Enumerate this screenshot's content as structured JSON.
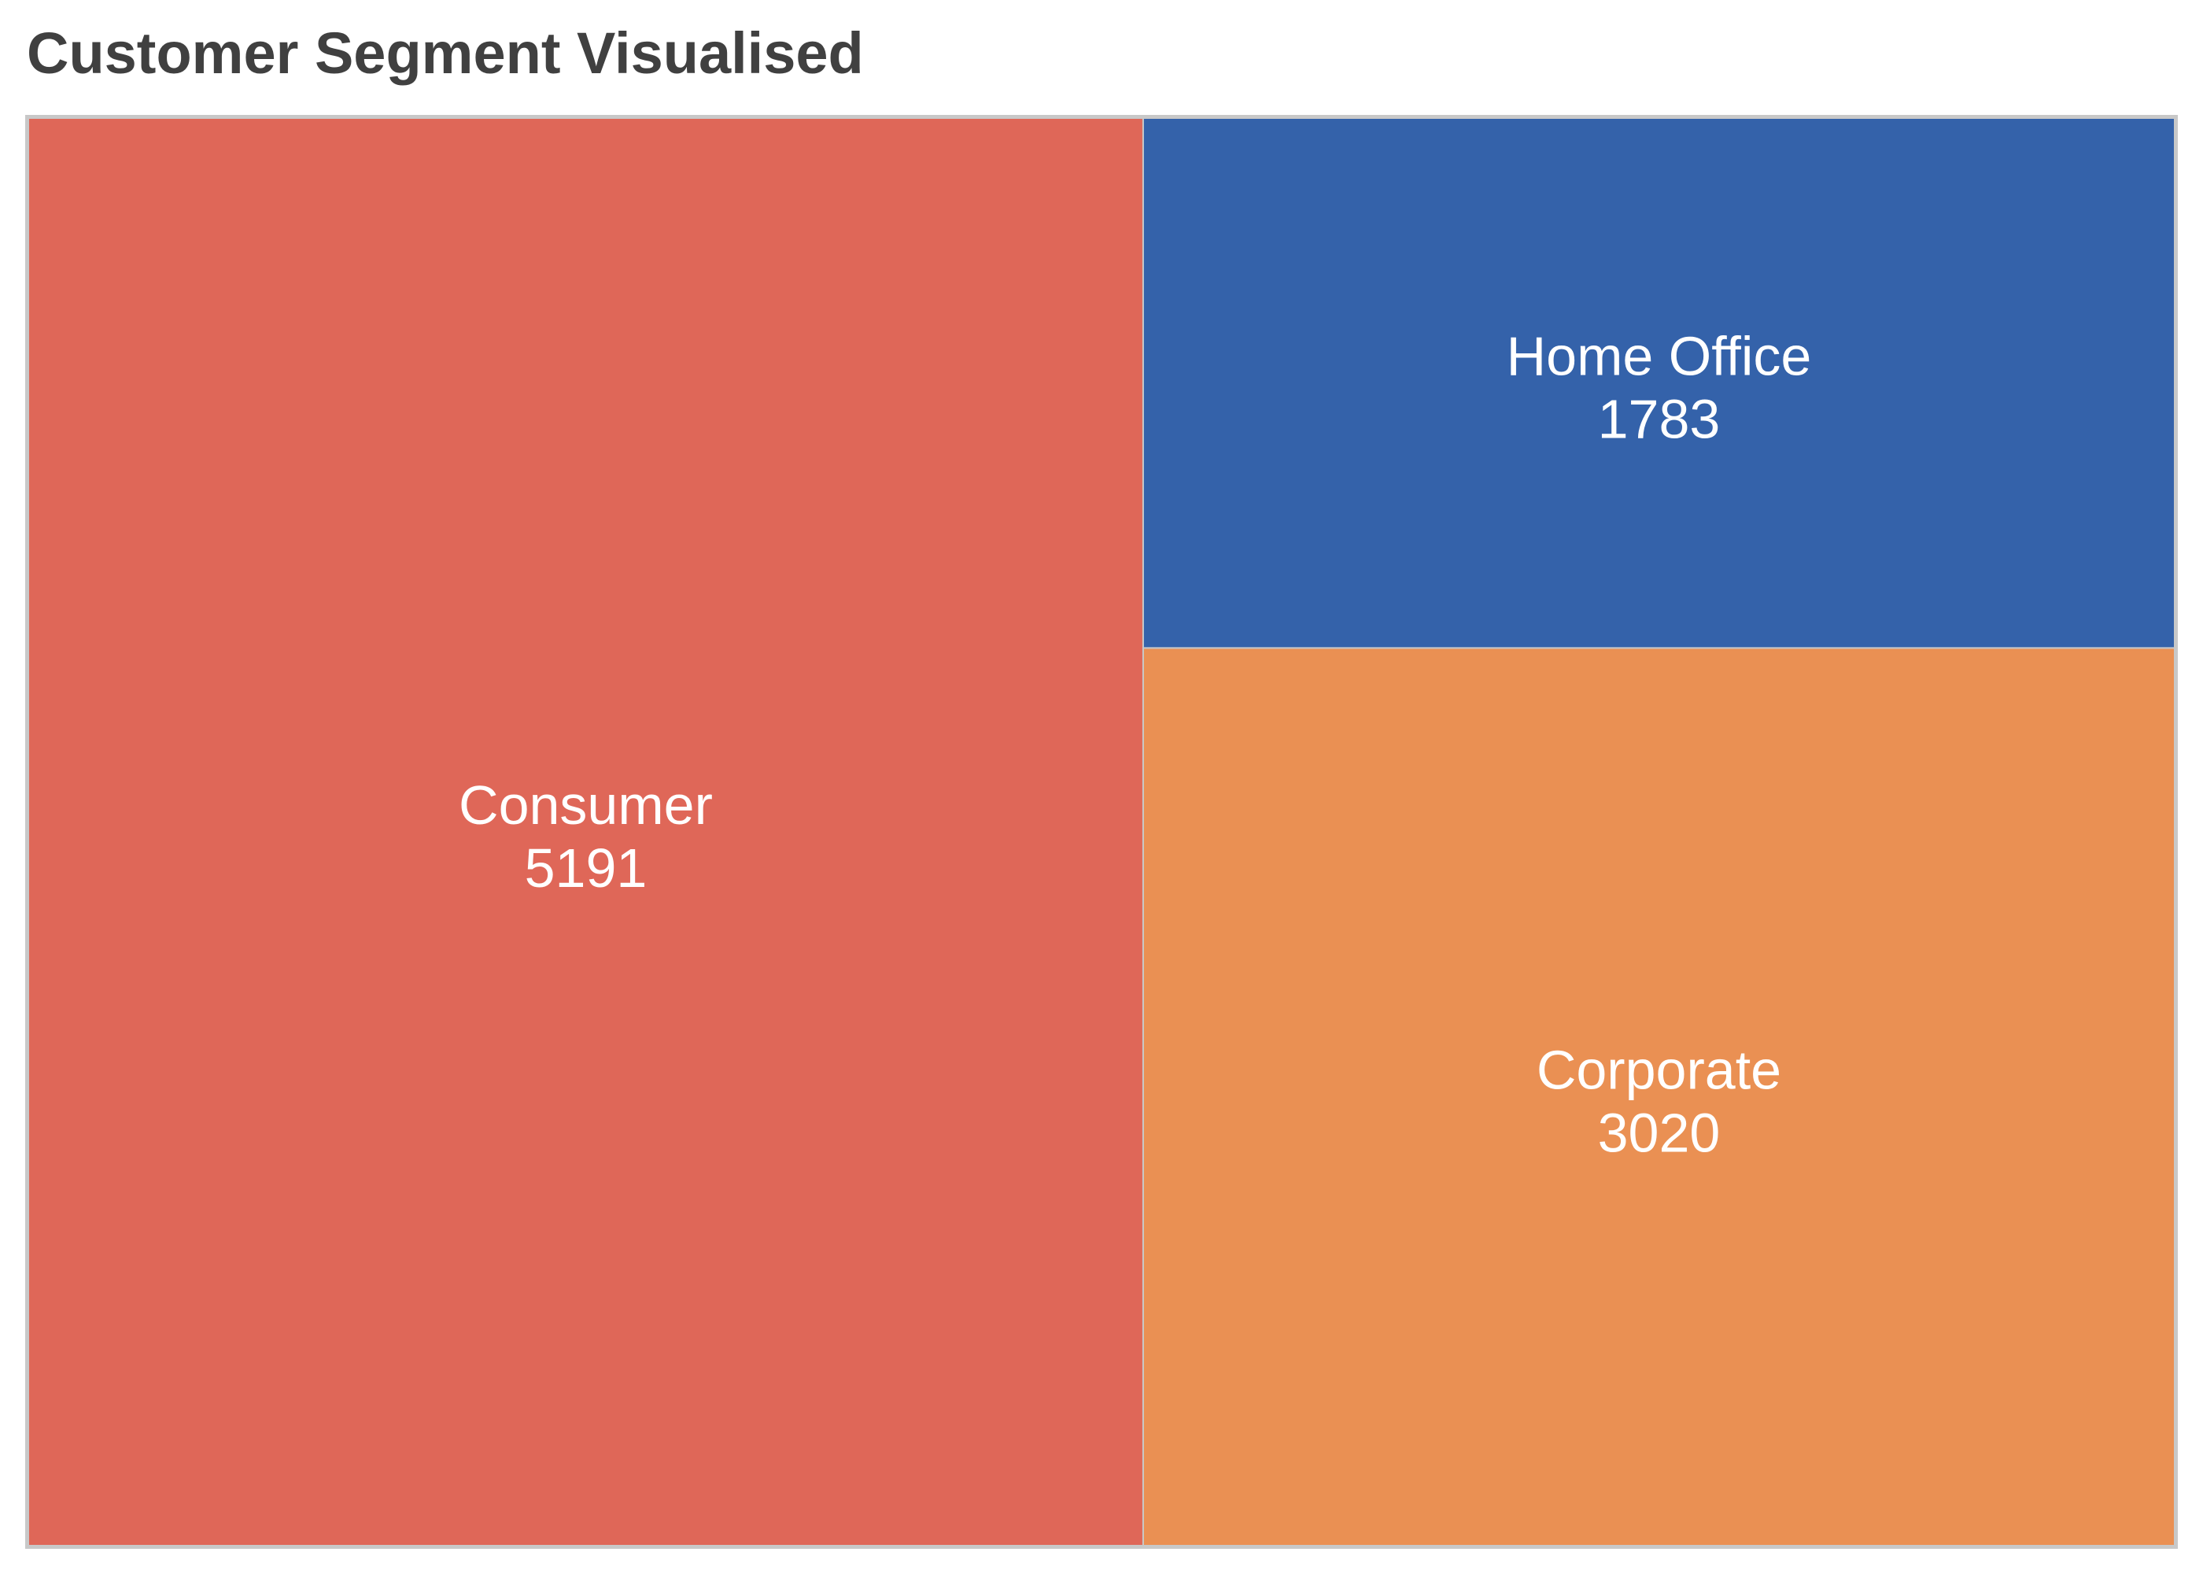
{
  "chart_data": {
    "type": "treemap",
    "title": "Customer Segment Visualised",
    "segments": [
      {
        "name": "Consumer",
        "value": 5191,
        "color": "#df6758"
      },
      {
        "name": "Home Office",
        "value": 1783,
        "color": "#3462aa"
      },
      {
        "name": "Corporate",
        "value": 3020,
        "color": "#ea9053"
      }
    ],
    "label_color": "#ffffff",
    "border_color": "#c8c8c8",
    "title_color": "#404040"
  }
}
